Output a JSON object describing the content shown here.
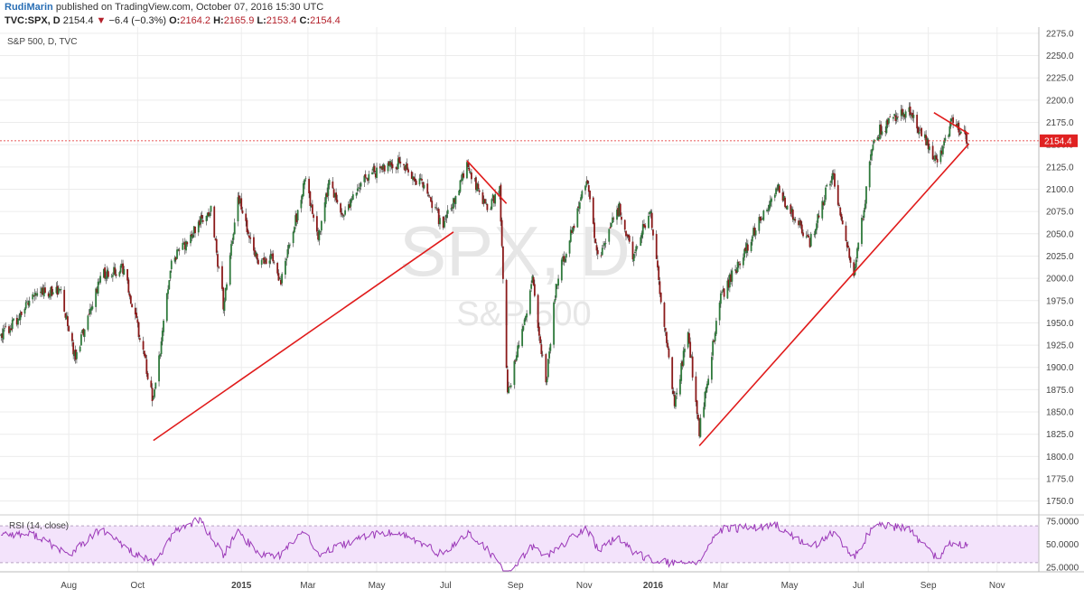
{
  "header": {
    "user": "RudiMarin",
    "published": "published on TradingView.com, October 07, 2016 15:30 UTC",
    "symbol": "TVC:SPX, D",
    "last": "2154.4",
    "change": "−6.4 (−0.3%)",
    "open_label": "O:",
    "open": "2164.2",
    "high_label": "H:",
    "high": "2165.9",
    "low_label": "L:",
    "low": "2153.4",
    "close_label": "C:",
    "close": "2154.4"
  },
  "colors": {
    "up": "#2f7a3c",
    "down": "#8b1a1a",
    "trendline": "#e01b1b",
    "rsi_line": "#9b38b8",
    "rsi_band": "#f3e3fb",
    "price_label_bg": "#e02222",
    "grid": "#ececec"
  },
  "chart_data": [
    {
      "type": "candlestick",
      "title": "S&P 500, D, TVC",
      "watermark": "SPX, D",
      "watermark_sub": "S&P 500",
      "y_ticks": [
        "2275.0",
        "2250.0",
        "2225.0",
        "2200.0",
        "2175.0",
        "2150.0",
        "2125.0",
        "2100.0",
        "2075.0",
        "2050.0",
        "2025.0",
        "2000.0",
        "1975.0",
        "1950.0",
        "1925.0",
        "1900.0",
        "1875.0",
        "1850.0",
        "1825.0",
        "1800.0",
        "1775.0",
        "1750.0"
      ],
      "ylim": [
        1737.5,
        2282
      ],
      "x_labels": [
        {
          "label": "Aug",
          "date": "2014-08-01"
        },
        {
          "label": "Oct",
          "date": "2014-10-01"
        },
        {
          "label": "2015",
          "date": "2015-01-01",
          "bold": true
        },
        {
          "label": "Mar",
          "date": "2015-03-01"
        },
        {
          "label": "May",
          "date": "2015-05-01"
        },
        {
          "label": "Jul",
          "date": "2015-07-01"
        },
        {
          "label": "Sep",
          "date": "2015-09-01"
        },
        {
          "label": "Nov",
          "date": "2015-11-01"
        },
        {
          "label": "2016",
          "date": "2016-01-01",
          "bold": true
        },
        {
          "label": "Mar",
          "date": "2016-03-01"
        },
        {
          "label": "May",
          "date": "2016-05-01"
        },
        {
          "label": "Jul",
          "date": "2016-07-01"
        },
        {
          "label": "Sep",
          "date": "2016-09-01"
        },
        {
          "label": "Nov",
          "date": "2016-11-01"
        }
      ],
      "x_range": [
        "2014-06-01",
        "2016-12-08"
      ],
      "last_price": "2154.4",
      "close_path": [
        [
          "2014-06-02",
          1935
        ],
        [
          "2014-06-20",
          1960
        ],
        [
          "2014-07-03",
          1985
        ],
        [
          "2014-07-24",
          1988
        ],
        [
          "2014-08-07",
          1910
        ],
        [
          "2014-08-29",
          2003
        ],
        [
          "2014-09-19",
          2011
        ],
        [
          "2014-10-01",
          1946
        ],
        [
          "2014-10-15",
          1862
        ],
        [
          "2014-10-31",
          2018
        ],
        [
          "2014-11-28",
          2067
        ],
        [
          "2014-12-05",
          2075
        ],
        [
          "2014-12-16",
          1972
        ],
        [
          "2014-12-29",
          2090
        ],
        [
          "2015-01-16",
          2019
        ],
        [
          "2015-01-29",
          2022
        ],
        [
          "2015-02-04",
          1995
        ],
        [
          "2015-02-27",
          2110
        ],
        [
          "2015-03-10",
          2044
        ],
        [
          "2015-03-20",
          2108
        ],
        [
          "2015-03-31",
          2067
        ],
        [
          "2015-04-24",
          2117
        ],
        [
          "2015-05-21",
          2130
        ],
        [
          "2015-06-10",
          2105
        ],
        [
          "2015-06-29",
          2057
        ],
        [
          "2015-07-20",
          2128
        ],
        [
          "2015-08-07",
          2078
        ],
        [
          "2015-08-18",
          2102
        ],
        [
          "2015-08-25",
          1867
        ],
        [
          "2015-09-16",
          1996
        ],
        [
          "2015-09-28",
          1881
        ],
        [
          "2015-10-07",
          1995
        ],
        [
          "2015-11-03",
          2109
        ],
        [
          "2015-11-13",
          2023
        ],
        [
          "2015-12-02",
          2080
        ],
        [
          "2015-12-14",
          2021
        ],
        [
          "2015-12-29",
          2078
        ],
        [
          "2016-01-20",
          1859
        ],
        [
          "2016-02-01",
          1939
        ],
        [
          "2016-02-11",
          1829
        ],
        [
          "2016-03-01",
          1978
        ],
        [
          "2016-04-20",
          2102
        ],
        [
          "2016-05-19",
          2040
        ],
        [
          "2016-06-08",
          2119
        ],
        [
          "2016-06-27",
          2000
        ],
        [
          "2016-07-15",
          2161
        ],
        [
          "2016-08-15",
          2190
        ],
        [
          "2016-09-09",
          2128
        ],
        [
          "2016-09-22",
          2177
        ],
        [
          "2016-10-07",
          2154.4
        ]
      ],
      "annotations": [
        {
          "type": "trendline",
          "from": [
            "2014-10-15",
            1818
          ],
          "to": [
            "2015-07-08",
            2052
          ]
        },
        {
          "type": "trendline",
          "from": [
            "2015-07-20",
            2132
          ],
          "to": [
            "2015-08-24",
            2084
          ]
        },
        {
          "type": "trendline",
          "from": [
            "2016-02-11",
            1812
          ],
          "to": [
            "2016-10-07",
            2151
          ]
        },
        {
          "type": "trendline",
          "from": [
            "2016-09-06",
            2186
          ],
          "to": [
            "2016-10-07",
            2162
          ]
        }
      ]
    },
    {
      "type": "line",
      "title": "RSI (14, close)",
      "y_ticks": [
        "75.0000",
        "50.0000",
        "25.0000"
      ],
      "ylim": [
        20,
        80
      ],
      "band": [
        30,
        70
      ],
      "path": [
        [
          "2014-06-02",
          62
        ],
        [
          "2014-07-03",
          60
        ],
        [
          "2014-08-01",
          38
        ],
        [
          "2014-08-29",
          66
        ],
        [
          "2014-10-01",
          38
        ],
        [
          "2014-10-15",
          29
        ],
        [
          "2014-11-05",
          66
        ],
        [
          "2014-11-25",
          77
        ],
        [
          "2014-12-16",
          38
        ],
        [
          "2014-12-29",
          64
        ],
        [
          "2015-01-16",
          40
        ],
        [
          "2015-02-04",
          38
        ],
        [
          "2015-02-27",
          66
        ],
        [
          "2015-03-10",
          38
        ],
        [
          "2015-04-24",
          60
        ],
        [
          "2015-05-21",
          63
        ],
        [
          "2015-06-29",
          38
        ],
        [
          "2015-07-20",
          63
        ],
        [
          "2015-08-07",
          44
        ],
        [
          "2015-08-25",
          16
        ],
        [
          "2015-09-16",
          48
        ],
        [
          "2015-09-28",
          37
        ],
        [
          "2015-11-03",
          68
        ],
        [
          "2015-11-13",
          44
        ],
        [
          "2015-12-02",
          58
        ],
        [
          "2015-12-14",
          40
        ],
        [
          "2016-01-20",
          28
        ],
        [
          "2016-02-11",
          32
        ],
        [
          "2016-03-01",
          66
        ],
        [
          "2016-04-20",
          70
        ],
        [
          "2016-05-19",
          46
        ],
        [
          "2016-06-08",
          62
        ],
        [
          "2016-06-27",
          35
        ],
        [
          "2016-07-15",
          72
        ],
        [
          "2016-08-15",
          66
        ],
        [
          "2016-09-09",
          34
        ],
        [
          "2016-09-22",
          52
        ],
        [
          "2016-10-07",
          48
        ]
      ]
    }
  ]
}
